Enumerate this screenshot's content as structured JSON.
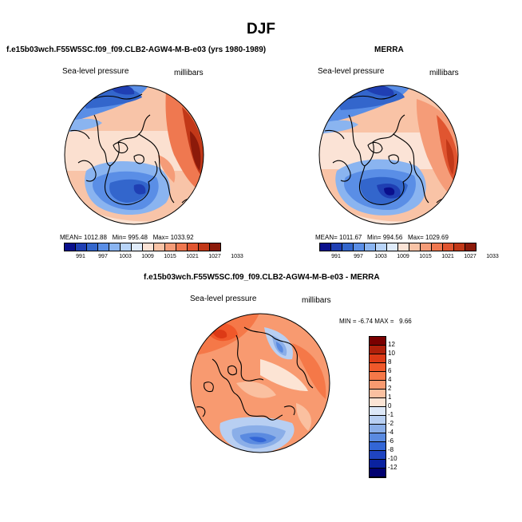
{
  "title": "DJF",
  "panels": {
    "model": {
      "title": "f.e15b03wch.F55W5SC.f09_f09.CLB2-AGW4-M-B-e03 (yrs 1980-1989)",
      "variable": "Sea-level pressure",
      "units": "millibars",
      "mean_label": "MEAN=",
      "mean": "1012.88",
      "min_label": "Min=",
      "min": "995.48",
      "max_label": "Max=",
      "max": "1033.92"
    },
    "merra": {
      "title": "MERRA",
      "variable": "Sea-level pressure",
      "units": "millibars",
      "mean_label": "MEAN=",
      "mean": "1011.67",
      "min_label": "Min=",
      "min": "994.56",
      "max_label": "Max=",
      "max": "1029.69"
    },
    "diff": {
      "title": "f.e15b03wch.F55W5SC.f09_f09.CLB2-AGW4-M-B-e03 - MERRA",
      "variable": "Sea-level pressure",
      "units": "millibars",
      "min_label": "MIN =",
      "min": "-6.74",
      "max_label": "MAX =",
      "max": "9.66"
    }
  },
  "abs_colorbar": {
    "ticks": [
      "991",
      "997",
      "1003",
      "1009",
      "1015",
      "1021",
      "1027",
      "1033"
    ],
    "colors": [
      "#0a0f8c",
      "#1f3fb3",
      "#3366cc",
      "#5a8ee6",
      "#8ab4f0",
      "#b8d4f8",
      "#e0ecfb",
      "#fbe3d6",
      "#f9c3a6",
      "#f59c78",
      "#ef7850",
      "#e05530",
      "#c23818",
      "#8c1a0a"
    ]
  },
  "diff_colorbar": {
    "labels": [
      "12",
      "10",
      "8",
      "6",
      "4",
      "2",
      "1",
      "0",
      "-1",
      "-2",
      "-4",
      "-6",
      "-8",
      "-10",
      "-12"
    ],
    "colors": [
      "#7a0000",
      "#b0200a",
      "#dd3a16",
      "#f0582a",
      "#f57848",
      "#f89a70",
      "#fac0a0",
      "#fce4d4",
      "#dde8f8",
      "#b8cff2",
      "#8aaee8",
      "#5a8ae0",
      "#3366d6",
      "#1f44c0",
      "#0a22a0",
      "#000070"
    ]
  }
}
